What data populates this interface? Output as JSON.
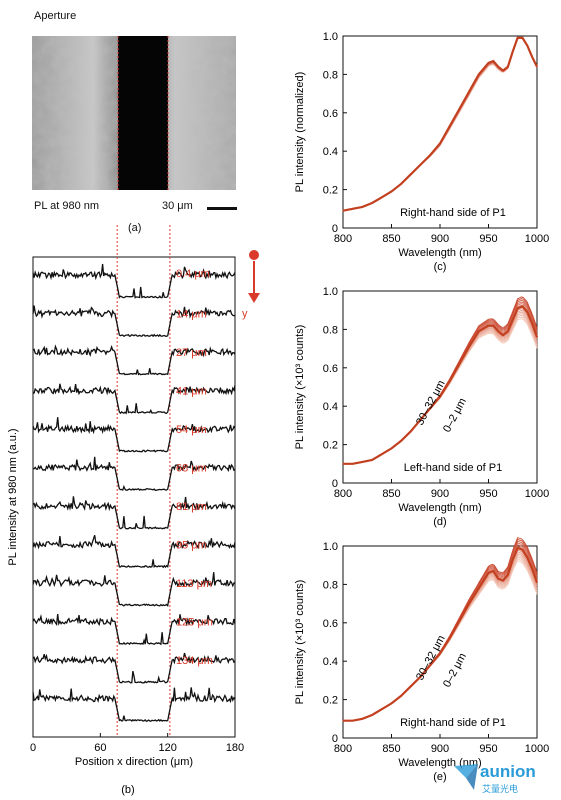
{
  "panel_a": {
    "title": "Aperture",
    "pl_label": "PL at 980 nm",
    "scale_label": "30 μm",
    "caption": "(a)"
  },
  "panel_b": {
    "caption": "(b)",
    "y_arrow_label": "y",
    "colors": {
      "trace": "#111111",
      "label": "#d93a2a",
      "guide": "#d93a2a"
    }
  },
  "panel_c": {
    "caption": "(c)"
  },
  "panel_d": {
    "caption": "(d)"
  },
  "panel_e": {
    "caption": "(e)"
  },
  "logo": {
    "text": "aunion",
    "subtext": "艾量光电"
  },
  "chart_data": [
    {
      "id": "b",
      "type": "line",
      "xlabel": "Position x direction (μm)",
      "ylabel": "PL intensity at 980 nm (a.u.)",
      "xlim": [
        0,
        180
      ],
      "xticks": [
        "0",
        "60",
        "120",
        "180"
      ],
      "aperture_edges_um": [
        75,
        122
      ],
      "series": [
        {
          "name": "0.4 μm"
        },
        {
          "name": "14 μm"
        },
        {
          "name": "27 μm"
        },
        {
          "name": "41 μm"
        },
        {
          "name": "54 μm"
        },
        {
          "name": "68 μm"
        },
        {
          "name": "81 μm"
        },
        {
          "name": "95 μm"
        },
        {
          "name": "113 μm"
        },
        {
          "name": "125 μm"
        },
        {
          "name": "134 μm"
        },
        {
          "name": ""
        }
      ]
    },
    {
      "id": "c",
      "type": "line",
      "xlabel": "Wavelength (nm)",
      "ylabel": "PL intensity (normalized)",
      "xlim": [
        800,
        1000
      ],
      "ylim": [
        0,
        1.0
      ],
      "xticks": [
        "800",
        "850",
        "900",
        "950",
        "1000"
      ],
      "yticks": [
        "0",
        "0.2",
        "0.4",
        "0.6",
        "0.8",
        "1.0"
      ],
      "annotation": "Right-hand side of P1",
      "x": [
        800,
        810,
        820,
        830,
        840,
        850,
        860,
        870,
        880,
        890,
        900,
        910,
        920,
        930,
        940,
        950,
        955,
        960,
        965,
        970,
        975,
        980,
        985,
        990,
        995,
        1000
      ],
      "values": [
        0.09,
        0.1,
        0.11,
        0.13,
        0.16,
        0.19,
        0.23,
        0.28,
        0.33,
        0.38,
        0.44,
        0.53,
        0.62,
        0.71,
        0.8,
        0.86,
        0.87,
        0.84,
        0.82,
        0.84,
        0.92,
        0.99,
        0.99,
        0.95,
        0.89,
        0.84
      ]
    },
    {
      "id": "d",
      "type": "line",
      "xlabel": "Wavelength (nm)",
      "ylabel": "PL intensity (×10³ counts)",
      "xlim": [
        800,
        1000
      ],
      "ylim": [
        0,
        1.0
      ],
      "xticks": [
        "800",
        "850",
        "900",
        "950",
        "1000"
      ],
      "yticks": [
        "0",
        "0.2",
        "0.4",
        "0.6",
        "0.8",
        "1.0"
      ],
      "annotation": "Left-hand side of P1",
      "series_labels": [
        "30–32 μm",
        "0–2 μm"
      ],
      "x": [
        800,
        810,
        820,
        830,
        840,
        850,
        860,
        870,
        880,
        890,
        900,
        910,
        920,
        930,
        940,
        950,
        955,
        960,
        965,
        970,
        975,
        980,
        985,
        990,
        995,
        1000
      ],
      "values": [
        0.1,
        0.1,
        0.11,
        0.12,
        0.15,
        0.18,
        0.22,
        0.27,
        0.33,
        0.39,
        0.45,
        0.53,
        0.62,
        0.71,
        0.79,
        0.82,
        0.82,
        0.79,
        0.77,
        0.79,
        0.85,
        0.91,
        0.92,
        0.89,
        0.83,
        0.76
      ]
    },
    {
      "id": "e",
      "type": "line",
      "xlabel": "Wavelength (nm)",
      "ylabel": "PL intensity (×10³ counts)",
      "xlim": [
        800,
        1000
      ],
      "ylim": [
        0,
        1.0
      ],
      "xticks": [
        "800",
        "850",
        "900",
        "950",
        "1000"
      ],
      "yticks": [
        "0",
        "0.2",
        "0.4",
        "0.6",
        "0.8",
        "1.0"
      ],
      "annotation": "Right-hand side of P1",
      "series_labels": [
        "30–32 μm",
        "0–2 μm"
      ],
      "x": [
        800,
        810,
        820,
        830,
        840,
        850,
        860,
        870,
        880,
        890,
        900,
        910,
        920,
        930,
        940,
        950,
        955,
        960,
        965,
        970,
        975,
        980,
        985,
        990,
        995,
        1000
      ],
      "values": [
        0.09,
        0.09,
        0.1,
        0.12,
        0.15,
        0.18,
        0.22,
        0.27,
        0.32,
        0.38,
        0.44,
        0.52,
        0.61,
        0.7,
        0.78,
        0.86,
        0.87,
        0.83,
        0.82,
        0.85,
        0.93,
        0.99,
        0.98,
        0.94,
        0.88,
        0.81
      ]
    }
  ]
}
